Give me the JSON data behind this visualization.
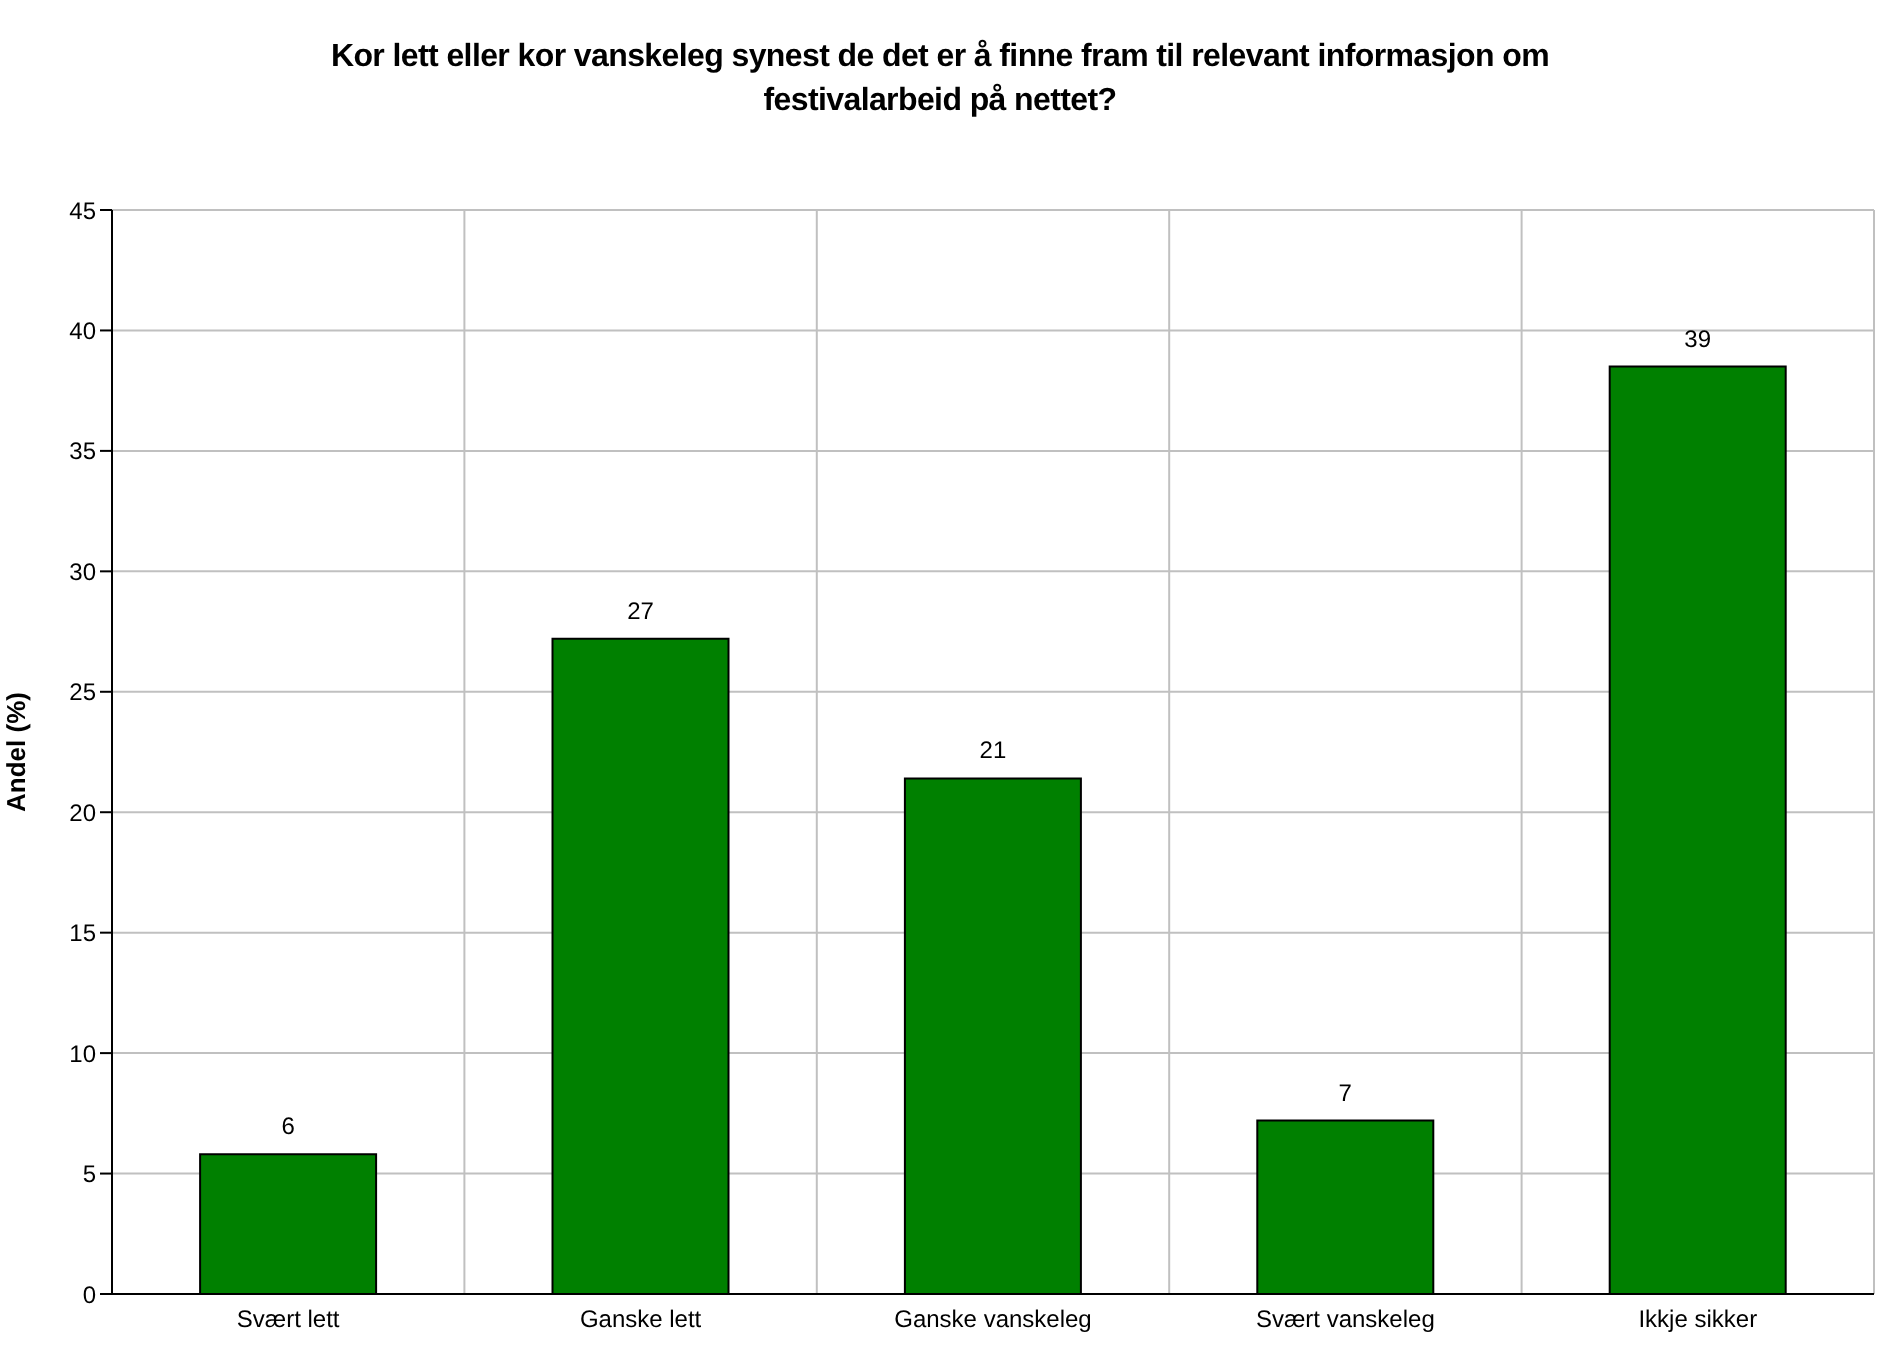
{
  "chart_data": {
    "type": "bar",
    "title": "Kor lett eller kor vanskeleg synest de det er å finne fram til relevant informasjon om festivalarbeid på nettet?",
    "ylabel": "Andel (%)",
    "categories": [
      "Svært lett",
      "Ganske lett",
      "Ganske vanskeleg",
      "Svært vanskeleg",
      "Ikkje sikker"
    ],
    "values": [
      5.8,
      27.2,
      21.4,
      7.2,
      38.5
    ],
    "value_labels": [
      "6",
      "27",
      "21",
      "7",
      "39"
    ],
    "color": "#008000",
    "ylim": [
      0,
      45
    ],
    "yticks": [
      0,
      5,
      10,
      15,
      20,
      25,
      30,
      35,
      40,
      45
    ],
    "grid": true
  }
}
